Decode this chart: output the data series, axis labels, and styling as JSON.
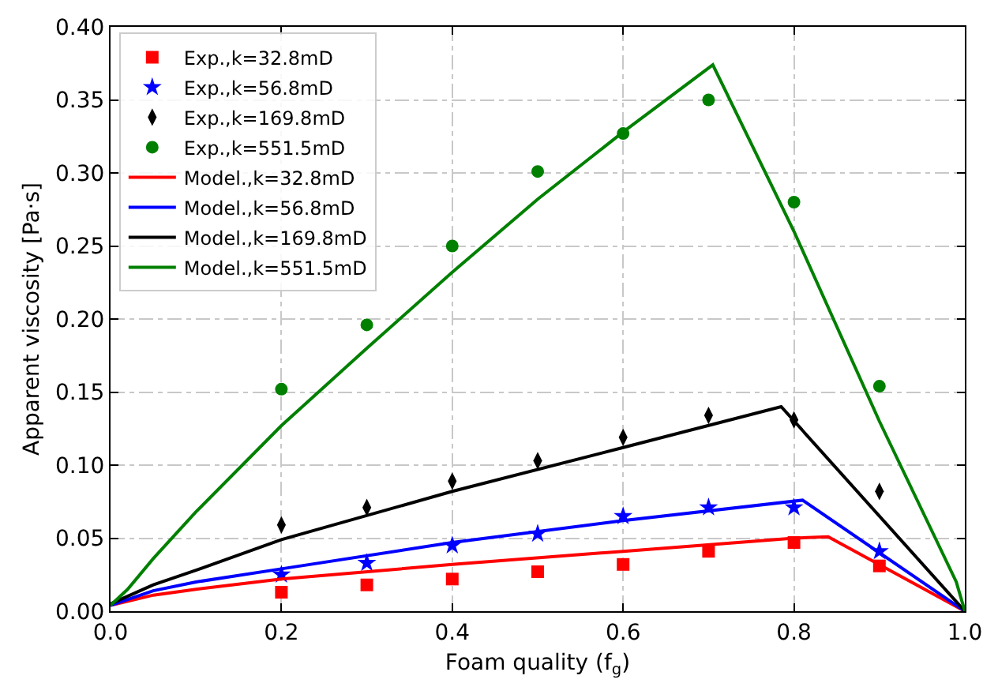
{
  "chart_data": {
    "type": "scatter",
    "xlabel": "Foam quality (f$_{g}$)",
    "ylabel": "Apparent viscosity [Pa·s]",
    "xlim": [
      0,
      1
    ],
    "ylim": [
      0,
      0.4
    ],
    "xticks": [
      {
        "value": 0,
        "label": "0.0"
      },
      0.2,
      0.4,
      0.6,
      0.8,
      {
        "value": 1,
        "label": "1.0"
      }
    ],
    "yticks": [
      {
        "value": 0,
        "label": "0.00"
      },
      0.05,
      {
        "value": 0.1,
        "label": "0.10"
      },
      0.15,
      {
        "value": 0.2,
        "label": "0.20"
      },
      0.25,
      {
        "value": 0.3,
        "label": "0.30"
      },
      0.35,
      {
        "value": 0.4,
        "label": "0.40"
      }
    ],
    "grid": true,
    "legend": "top left",
    "series": [
      {
        "name": "Exp.,k=32.8mD",
        "color": "#ff0000",
        "marker": "square",
        "x": [
          0.2,
          0.3,
          0.4,
          0.5,
          0.6,
          0.7,
          0.8,
          0.9
        ],
        "values": [
          0.013,
          0.018,
          0.022,
          0.027,
          0.032,
          0.041,
          0.047,
          0.031
        ]
      },
      {
        "name": "Exp.,k=56.8mD",
        "color": "#0000ff",
        "marker": "star",
        "x": [
          0.2,
          0.3,
          0.4,
          0.5,
          0.6,
          0.7,
          0.8,
          0.9
        ],
        "values": [
          0.025,
          0.033,
          0.045,
          0.053,
          0.065,
          0.071,
          0.071,
          0.041
        ]
      },
      {
        "name": "Exp.,k=169.8mD",
        "color": "#000000",
        "marker": "diamond",
        "x": [
          0.2,
          0.3,
          0.4,
          0.5,
          0.6,
          0.7,
          0.8,
          0.9
        ],
        "values": [
          0.059,
          0.071,
          0.089,
          0.103,
          0.119,
          0.134,
          0.131,
          0.082
        ]
      },
      {
        "name": "Exp.,k=551.5mD",
        "color": "#008000",
        "marker": "circle",
        "x": [
          0.2,
          0.3,
          0.4,
          0.5,
          0.6,
          0.7,
          0.8,
          0.9
        ],
        "values": [
          0.152,
          0.196,
          0.25,
          0.301,
          0.327,
          0.35,
          0.28,
          0.154
        ]
      },
      {
        "type": "line",
        "name": "Model.,k=32.8mD",
        "color": "#ff0000",
        "line_style": "solid",
        "x": [
          0,
          0.05,
          0.1,
          0.2,
          0.4,
          0.6,
          0.8,
          0.84,
          1
        ],
        "values": [
          0.004,
          0.011,
          0.015,
          0.022,
          0.032,
          0.041,
          0.05,
          0.051,
          0
        ]
      },
      {
        "type": "line",
        "name": "Model.,k=56.8mD",
        "color": "#0000ff",
        "line_style": "solid",
        "x": [
          0,
          0.05,
          0.1,
          0.2,
          0.4,
          0.6,
          0.81,
          1
        ],
        "values": [
          0.004,
          0.014,
          0.02,
          0.029,
          0.047,
          0.062,
          0.076,
          0
        ]
      },
      {
        "type": "line",
        "name": "Model.,k=169.8mD",
        "color": "#000000",
        "line_style": "solid",
        "x": [
          0,
          0.05,
          0.1,
          0.2,
          0.4,
          0.6,
          0.785,
          1
        ],
        "values": [
          0.005,
          0.018,
          0.028,
          0.049,
          0.082,
          0.112,
          0.14,
          0
        ]
      },
      {
        "type": "line",
        "name": "Model.,k=551.5mD",
        "color": "#008000",
        "line_style": "solid",
        "x": [
          0,
          0.02,
          0.05,
          0.1,
          0.2,
          0.3,
          0.4,
          0.5,
          0.6,
          0.705,
          0.8,
          0.9,
          0.99,
          1
        ],
        "values": [
          0.004,
          0.015,
          0.036,
          0.068,
          0.127,
          0.18,
          0.232,
          0.282,
          0.328,
          0.374,
          0.26,
          0.13,
          0.02,
          0
        ]
      }
    ]
  }
}
